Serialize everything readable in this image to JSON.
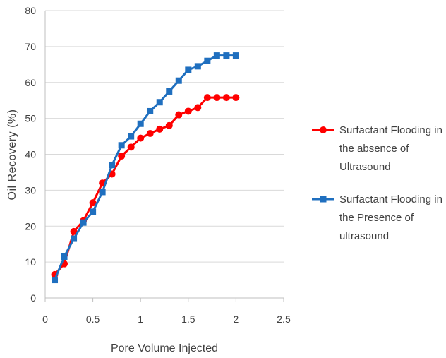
{
  "chart_data": {
    "type": "line",
    "title": "",
    "xlabel": "Pore Volume Injected",
    "ylabel": "Oil Recovery (%)",
    "xlim": [
      0,
      2.5
    ],
    "ylim": [
      0,
      80
    ],
    "xticks": [
      0,
      0.5,
      1,
      1.5,
      2,
      2.5
    ],
    "xtick_labels": [
      "0",
      "0.5",
      "1",
      "1.5",
      "2",
      "2.5"
    ],
    "yticks": [
      0,
      10,
      20,
      30,
      40,
      50,
      60,
      70,
      80
    ],
    "ytick_labels": [
      "0",
      "10",
      "20",
      "30",
      "40",
      "50",
      "60",
      "70",
      "80"
    ],
    "grid": "horizontal",
    "legend_position": "right",
    "series": [
      {
        "name": "Surfactant Flooding in the absence of Ultrasound",
        "legend_lines": [
          "Surfactant Flooding in",
          "the absence of",
          "Ultrasound"
        ],
        "color": "#ff0000",
        "marker": "circle",
        "x": [
          0.1,
          0.2,
          0.3,
          0.4,
          0.5,
          0.6,
          0.7,
          0.8,
          0.9,
          1.0,
          1.1,
          1.2,
          1.3,
          1.4,
          1.5,
          1.6,
          1.7,
          1.8,
          1.9,
          2.0
        ],
        "y": [
          6.5,
          9.5,
          18.5,
          21.5,
          26.5,
          32,
          34.5,
          39.5,
          42,
          44.5,
          45.8,
          47,
          48,
          51,
          52,
          53,
          55.8,
          55.8,
          55.8,
          55.8
        ]
      },
      {
        "name": "Surfactant Flooding in the Presence of ultrasound",
        "legend_lines": [
          "Surfactant Flooding in",
          "the Presence of",
          "ultrasound"
        ],
        "color": "#1f6fbf",
        "marker": "square",
        "x": [
          0.1,
          0.2,
          0.3,
          0.4,
          0.5,
          0.6,
          0.7,
          0.8,
          0.9,
          1.0,
          1.1,
          1.2,
          1.3,
          1.4,
          1.5,
          1.6,
          1.7,
          1.8,
          1.9,
          2.0
        ],
        "y": [
          5,
          11.5,
          16.5,
          21,
          24,
          29.5,
          37,
          42.5,
          45,
          48.5,
          52,
          54.5,
          57.5,
          60.5,
          63.5,
          64.5,
          66,
          67.5,
          67.5,
          67.5
        ]
      }
    ]
  }
}
